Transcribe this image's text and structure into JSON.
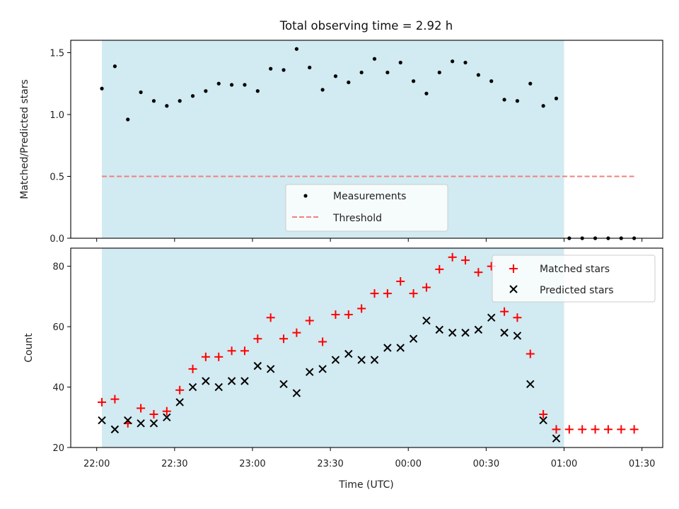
{
  "chart_data": [
    {
      "type": "scatter",
      "title": "Total observing time = 2.92 h",
      "ylabel": "Matched/Predicted stars",
      "xlabel": "",
      "ylim": [
        0,
        1.6
      ],
      "y_ticks": [
        "0.0",
        "0.5",
        "1.0",
        "1.5"
      ],
      "x_tick_values": [
        0,
        30,
        60,
        90,
        120,
        150,
        180,
        210
      ],
      "shaded_span_x": [
        2,
        180
      ],
      "legend": [
        "Measurements",
        "Threshold"
      ],
      "legend_position": "lower center",
      "series": [
        {
          "name": "Measurements",
          "color": "#000000",
          "marker": "dot",
          "x": [
            2,
            7,
            12,
            17,
            22,
            27,
            32,
            37,
            42,
            47,
            52,
            57,
            62,
            67,
            72,
            77,
            82,
            87,
            92,
            97,
            102,
            107,
            112,
            117,
            122,
            127,
            132,
            137,
            142,
            147,
            152,
            157,
            162,
            167,
            172,
            177,
            182,
            187,
            192,
            197,
            202,
            207
          ],
          "y": [
            1.21,
            1.39,
            0.96,
            1.18,
            1.11,
            1.07,
            1.11,
            1.15,
            1.19,
            1.25,
            1.24,
            1.24,
            1.19,
            1.37,
            1.36,
            1.53,
            1.38,
            1.2,
            1.31,
            1.26,
            1.34,
            1.45,
            1.34,
            1.42,
            1.27,
            1.17,
            1.34,
            1.43,
            1.42,
            1.32,
            1.27,
            1.12,
            1.11,
            1.25,
            1.07,
            1.13,
            0.0,
            0.0,
            0.0,
            0.0,
            0.0,
            0.0
          ]
        },
        {
          "name": "Threshold",
          "color": "#f08080",
          "style": "dashed",
          "x": [
            2,
            207
          ],
          "y": [
            0.5,
            0.5
          ]
        }
      ]
    },
    {
      "type": "scatter",
      "xlabel": "Time (UTC)",
      "ylabel": "Count",
      "ylim": [
        20,
        86
      ],
      "y_ticks": [
        "20",
        "40",
        "60",
        "80"
      ],
      "x_ticks": [
        "22:00",
        "22:30",
        "23:00",
        "23:30",
        "00:00",
        "00:30",
        "01:00",
        "01:30"
      ],
      "x_tick_values": [
        0,
        30,
        60,
        90,
        120,
        150,
        180,
        210
      ],
      "shaded_span_x": [
        2,
        180
      ],
      "legend": [
        "Matched stars",
        "Predicted stars"
      ],
      "legend_position": "upper right",
      "series": [
        {
          "name": "Matched stars",
          "color": "#ff0000",
          "marker": "plus",
          "x": [
            2,
            7,
            12,
            17,
            22,
            27,
            32,
            37,
            42,
            47,
            52,
            57,
            62,
            67,
            72,
            77,
            82,
            87,
            92,
            97,
            102,
            107,
            112,
            117,
            122,
            127,
            132,
            137,
            142,
            147,
            152,
            157,
            162,
            167,
            172,
            177,
            182,
            187,
            192,
            197,
            202,
            207
          ],
          "y": [
            35,
            36,
            28,
            33,
            31,
            32,
            39,
            46,
            50,
            50,
            52,
            52,
            56,
            63,
            56,
            58,
            62,
            55,
            64,
            64,
            66,
            71,
            71,
            75,
            71,
            73,
            79,
            83,
            82,
            78,
            80,
            65,
            63,
            51,
            31,
            26,
            26,
            26,
            26,
            26,
            26,
            26
          ]
        },
        {
          "name": "Predicted stars",
          "color": "#000000",
          "marker": "x",
          "x": [
            2,
            7,
            12,
            17,
            22,
            27,
            32,
            37,
            42,
            47,
            52,
            57,
            62,
            67,
            72,
            77,
            82,
            87,
            92,
            97,
            102,
            107,
            112,
            117,
            122,
            127,
            132,
            137,
            142,
            147,
            152,
            157,
            162,
            167,
            172,
            177
          ],
          "y": [
            29,
            26,
            29,
            28,
            28,
            30,
            35,
            40,
            42,
            40,
            42,
            42,
            47,
            46,
            41,
            38,
            45,
            46,
            49,
            51,
            49,
            49,
            53,
            53,
            56,
            62,
            59,
            58,
            58,
            59,
            63,
            58,
            57,
            41,
            29,
            23
          ]
        }
      ]
    }
  ]
}
